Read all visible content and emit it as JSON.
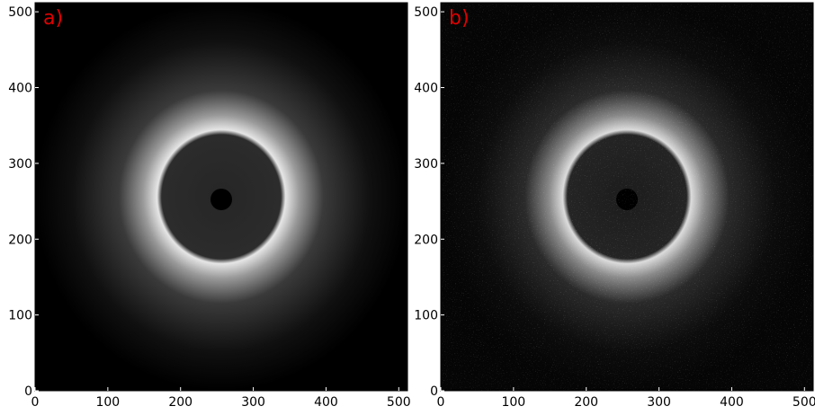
{
  "chart_data": [
    {
      "type": "image",
      "label": "a)",
      "xlim": [
        0,
        512
      ],
      "ylim": [
        0,
        512
      ],
      "xticks": [
        0,
        100,
        200,
        300,
        400,
        500
      ],
      "yticks": [
        0,
        100,
        200,
        300,
        400,
        500
      ]
    },
    {
      "type": "image",
      "label": "b)",
      "xlim": [
        0,
        512
      ],
      "ylim": [
        0,
        512
      ],
      "xticks": [
        0,
        100,
        200,
        300,
        400,
        500
      ],
      "yticks": [
        0,
        100,
        200,
        300,
        400,
        500
      ]
    }
  ]
}
